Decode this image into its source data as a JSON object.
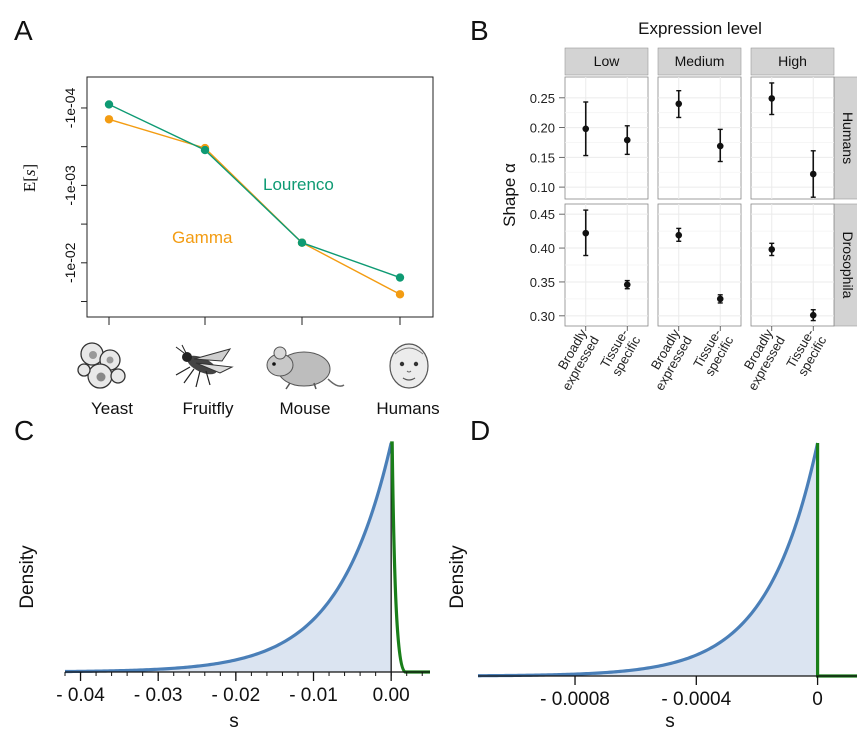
{
  "panels": {
    "A": "A",
    "B": "B",
    "C": "C",
    "D": "D"
  },
  "colors": {
    "lourenco": "#0e9a73",
    "gamma": "#f39c12",
    "blue_curve": "#4a7fb8",
    "blue_fill": "#dbe4f1",
    "green_curve": "#1a7f1a",
    "strip_fill": "#d3d3d3",
    "grid": "#ebebeb"
  },
  "chart_data": [
    {
      "id": "A",
      "type": "line",
      "ylabel": "E[s]",
      "y_scale": "log (magnitude)",
      "y_ticks": [
        "-1e-04",
        "-1e-03",
        "-1e-02"
      ],
      "categories": [
        "Yeast",
        "Fruitfly",
        "Mouse",
        "Humans"
      ],
      "icons": [
        "yeast-cells-icon",
        "fruitfly-icon",
        "mouse-icon",
        "baby-face-icon"
      ],
      "series": [
        {
          "name": "Lourenco",
          "color": "#0e9a73",
          "values": [
            -9e-05,
            -0.00035,
            -0.0055,
            -0.0155
          ]
        },
        {
          "name": "Gamma",
          "color": "#f39c12",
          "values": [
            -0.00014,
            -0.00033,
            -0.0055,
            -0.0255
          ]
        }
      ]
    },
    {
      "id": "B",
      "type": "scatter",
      "title": "Expression level",
      "ylabel": "Shape α",
      "column_facets": [
        "Low",
        "Medium",
        "High"
      ],
      "row_facets": [
        "Humans",
        "Drosophila"
      ],
      "x_categories": [
        "Broadly expressed",
        "Tissue-specific"
      ],
      "x_category_lines": [
        [
          "Broadly",
          "expressed"
        ],
        [
          "Tissue-",
          "specific"
        ]
      ],
      "rows": [
        {
          "name": "Humans",
          "y_ticks": [
            0.1,
            0.15,
            0.2,
            0.25
          ],
          "ylim": [
            0.08,
            0.285
          ],
          "points": [
            [
              {
                "mean": 0.198,
                "lo": 0.153,
                "hi": 0.243
              },
              {
                "mean": 0.179,
                "lo": 0.155,
                "hi": 0.203
              }
            ],
            [
              {
                "mean": 0.24,
                "lo": 0.217,
                "hi": 0.262
              },
              {
                "mean": 0.169,
                "lo": 0.143,
                "hi": 0.197
              }
            ],
            [
              {
                "mean": 0.249,
                "lo": 0.222,
                "hi": 0.275
              },
              {
                "mean": 0.122,
                "lo": 0.083,
                "hi": 0.161
              }
            ]
          ]
        },
        {
          "name": "Drosophila",
          "y_ticks": [
            0.3,
            0.35,
            0.4,
            0.45
          ],
          "ylim": [
            0.285,
            0.465
          ],
          "points": [
            [
              {
                "mean": 0.422,
                "lo": 0.389,
                "hi": 0.456
              },
              {
                "mean": 0.346,
                "lo": 0.34,
                "hi": 0.352
              }
            ],
            [
              {
                "mean": 0.419,
                "lo": 0.41,
                "hi": 0.429
              },
              {
                "mean": 0.325,
                "lo": 0.319,
                "hi": 0.331
              }
            ],
            [
              {
                "mean": 0.398,
                "lo": 0.389,
                "hi": 0.407
              },
              {
                "mean": 0.301,
                "lo": 0.293,
                "hi": 0.309
              }
            ]
          ]
        }
      ]
    },
    {
      "id": "C",
      "type": "area",
      "xlabel": "s",
      "ylabel": "Density",
      "xlim": [
        -0.042,
        0.005
      ],
      "x_ticks": [
        -0.04,
        -0.03,
        -0.02,
        -0.01,
        0.0
      ],
      "x_tick_labels": [
        "- 0.04",
        "- 0.03",
        "- 0.02",
        "- 0.01",
        "0.00"
      ],
      "zero_line": 0
    },
    {
      "id": "D",
      "type": "area",
      "xlabel": "s",
      "ylabel": "Density",
      "xlim": [
        -0.00112,
        0.00013
      ],
      "x_ticks": [
        -0.0008,
        -0.0004,
        0
      ],
      "x_tick_labels": [
        "- 0.0008",
        "- 0.0004",
        "0"
      ],
      "zero_line": 0
    }
  ]
}
